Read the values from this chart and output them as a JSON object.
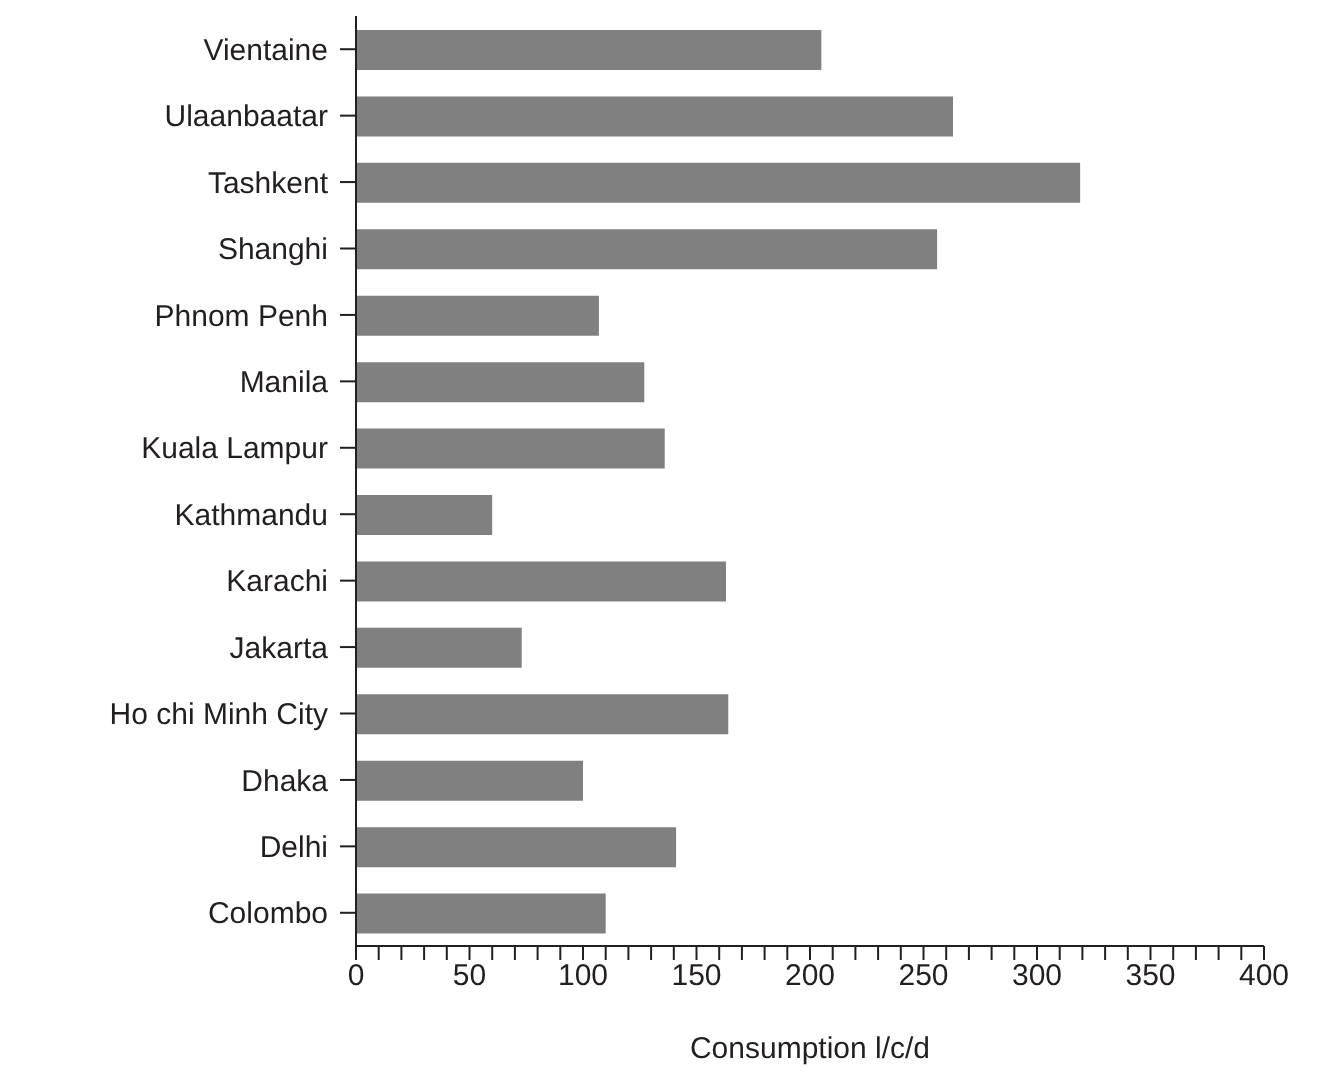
{
  "chart_data": {
    "type": "bar",
    "orientation": "horizontal",
    "xlabel": "Consumption l/c/d",
    "categories": [
      "Vientaine",
      "Ulaanbaatar",
      "Tashkent",
      "Shanghi",
      "Phnom Penh",
      "Manila",
      "Kuala Lampur",
      "Kathmandu",
      "Karachi",
      "Jakarta",
      "Ho chi Minh City",
      "Dhaka",
      "Delhi",
      "Colombo"
    ],
    "values": [
      205,
      263,
      319,
      256,
      107,
      127,
      136,
      60,
      163,
      73,
      164,
      100,
      141,
      110
    ],
    "color": "#808080",
    "xlim": [
      0,
      400
    ],
    "xticks": [
      0,
      {
        "value": 10,
        "label": null
      },
      {
        "value": 20,
        "label": null
      },
      {
        "value": 30,
        "label": null
      },
      {
        "value": 40,
        "label": null
      },
      50,
      {
        "value": 60,
        "label": null
      },
      {
        "value": 70,
        "label": null
      },
      {
        "value": 80,
        "label": null
      },
      {
        "value": 90,
        "label": null
      },
      100,
      {
        "value": 110,
        "label": null
      },
      {
        "value": 120,
        "label": null
      },
      {
        "value": 130,
        "label": null
      },
      {
        "value": 140,
        "label": null
      },
      150,
      {
        "value": 160,
        "label": null
      },
      {
        "value": 170,
        "label": null
      },
      {
        "value": 180,
        "label": null
      },
      {
        "value": 190,
        "label": null
      },
      200,
      {
        "value": 210,
        "label": null
      },
      {
        "value": 220,
        "label": null
      },
      {
        "value": 230,
        "label": null
      },
      {
        "value": 240,
        "label": null
      },
      250,
      {
        "value": 260,
        "label": null
      },
      {
        "value": 270,
        "label": null
      },
      {
        "value": 280,
        "label": null
      },
      {
        "value": 290,
        "label": null
      },
      300,
      {
        "value": 310,
        "label": null
      },
      {
        "value": 320,
        "label": null
      },
      {
        "value": 330,
        "label": null
      },
      {
        "value": 340,
        "label": null
      },
      350,
      {
        "value": 360,
        "label": null
      },
      {
        "value": 370,
        "label": null
      },
      {
        "value": 380,
        "label": null
      },
      {
        "value": 390,
        "label": null
      },
      400
    ],
    "grid": false,
    "legend": false
  }
}
